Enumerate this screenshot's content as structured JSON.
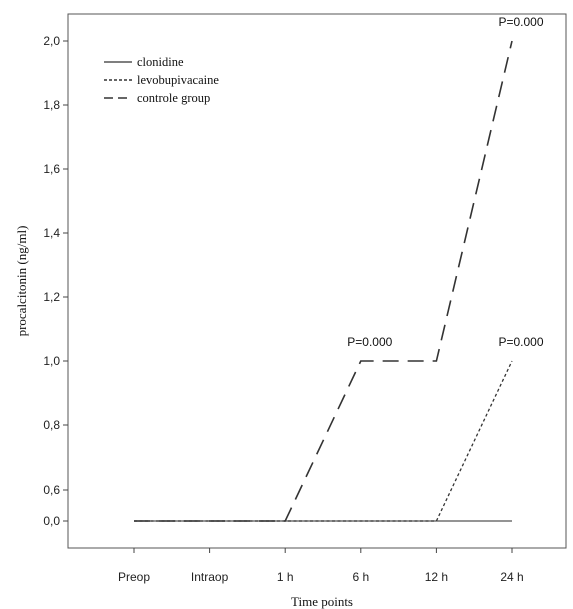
{
  "chart_data": {
    "type": "line",
    "title": "",
    "xlabel": "Time points",
    "ylabel": "procalcitonin (ng/ml)",
    "categories": [
      "Preop",
      "Intraop",
      "1 h",
      "6 h",
      "12 h",
      "24 h"
    ],
    "y_ticks": [
      {
        "label": "0,0",
        "value": 0
      },
      {
        "label": "0,6",
        "value": 0.6
      },
      {
        "label": "0,8",
        "value": 0.8
      },
      {
        "label": "1,0",
        "value": 1.0
      },
      {
        "label": "1,2",
        "value": 1.2
      },
      {
        "label": "1,4",
        "value": 1.4
      },
      {
        "label": "1,6",
        "value": 1.6
      },
      {
        "label": "1,8",
        "value": 1.8
      },
      {
        "label": "2,0",
        "value": 2.0
      }
    ],
    "series": [
      {
        "name": "clonidine",
        "values": [
          0,
          0,
          0,
          0,
          0,
          0
        ],
        "color": "#555555",
        "style": "solid"
      },
      {
        "name": "levobupivacaine",
        "values": [
          0,
          0,
          0,
          0,
          0,
          1.0
        ],
        "color": "#333333",
        "style": "dotted"
      },
      {
        "name": "controle group",
        "values": [
          0,
          0,
          0,
          1.0,
          1.0,
          2.0
        ],
        "color": "#333333",
        "style": "dashed"
      }
    ],
    "annotations": [
      {
        "text": "P=0.000",
        "category": "6 h",
        "value": 1.0
      },
      {
        "text": "P=0.000",
        "category": "24 h",
        "value": 2.0
      },
      {
        "text": "P=0.000",
        "category": "24 h",
        "value": 1.0
      }
    ],
    "legend_position": "top-left",
    "grid": false
  }
}
